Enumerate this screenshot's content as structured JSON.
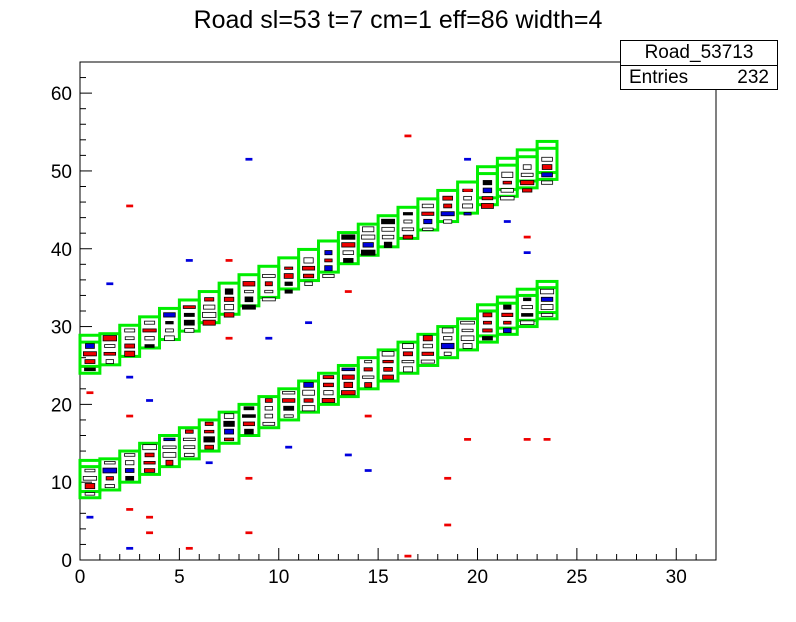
{
  "chart_data": {
    "type": "heatmap",
    "title": "Road sl=53 t=7 cm=1 eff=86 width=4",
    "xlabel": "",
    "ylabel": "",
    "xlim": [
      0,
      32
    ],
    "ylim": [
      0,
      64
    ],
    "x_ticks": [
      0,
      5,
      10,
      15,
      20,
      25,
      30
    ],
    "y_ticks": [
      0,
      10,
      20,
      30,
      40,
      50,
      60
    ],
    "grid": false,
    "legend_position": "top-right",
    "stats": {
      "name": "Road_53713",
      "entries_label": "Entries",
      "entries": "232"
    },
    "road_color": "#00ee00",
    "road_width": 4,
    "roads": [
      {
        "name": "upper",
        "y_start": 24,
        "slope": 1.083
      },
      {
        "name": "lower",
        "y_start": 8,
        "slope": 1.0
      }
    ],
    "stray_hits": [
      {
        "x": 16.5,
        "y": 54.5,
        "c": "red"
      },
      {
        "x": 8.5,
        "y": 51.5,
        "c": "blue"
      },
      {
        "x": 2.5,
        "y": 45.5,
        "c": "red"
      },
      {
        "x": 5.5,
        "y": 38.5,
        "c": "blue"
      },
      {
        "x": 7.5,
        "y": 38.5,
        "c": "red"
      },
      {
        "x": 1.5,
        "y": 35.5,
        "c": "blue"
      },
      {
        "x": 13.5,
        "y": 34.5,
        "c": "red"
      },
      {
        "x": 11.5,
        "y": 30.5,
        "c": "blue"
      },
      {
        "x": 7.5,
        "y": 28.5,
        "c": "red"
      },
      {
        "x": 9.5,
        "y": 28.5,
        "c": "blue"
      },
      {
        "x": 2.5,
        "y": 23.5,
        "c": "blue"
      },
      {
        "x": 0.5,
        "y": 21.5,
        "c": "red"
      },
      {
        "x": 3.5,
        "y": 20.5,
        "c": "blue"
      },
      {
        "x": 2.5,
        "y": 18.5,
        "c": "red"
      },
      {
        "x": 14.5,
        "y": 18.5,
        "c": "red"
      },
      {
        "x": 10.5,
        "y": 14.5,
        "c": "blue"
      },
      {
        "x": 19.5,
        "y": 15.5,
        "c": "red"
      },
      {
        "x": 22.5,
        "y": 15.5,
        "c": "red"
      },
      {
        "x": 23.5,
        "y": 15.5,
        "c": "red"
      },
      {
        "x": 13.5,
        "y": 13.5,
        "c": "blue"
      },
      {
        "x": 6.5,
        "y": 12.5,
        "c": "blue"
      },
      {
        "x": 14.5,
        "y": 11.5,
        "c": "blue"
      },
      {
        "x": 8.5,
        "y": 10.5,
        "c": "red"
      },
      {
        "x": 18.5,
        "y": 10.5,
        "c": "red"
      },
      {
        "x": 2.5,
        "y": 6.5,
        "c": "red"
      },
      {
        "x": 0.5,
        "y": 5.5,
        "c": "blue"
      },
      {
        "x": 3.5,
        "y": 5.5,
        "c": "red"
      },
      {
        "x": 3.5,
        "y": 3.5,
        "c": "red"
      },
      {
        "x": 8.5,
        "y": 3.5,
        "c": "red"
      },
      {
        "x": 18.5,
        "y": 4.5,
        "c": "red"
      },
      {
        "x": 2.5,
        "y": 1.5,
        "c": "blue"
      },
      {
        "x": 5.5,
        "y": 1.5,
        "c": "red"
      },
      {
        "x": 16.5,
        "y": 0.5,
        "c": "red"
      },
      {
        "x": 19.5,
        "y": 51.5,
        "c": "blue"
      },
      {
        "x": 21.5,
        "y": 43.5,
        "c": "blue"
      },
      {
        "x": 22.5,
        "y": 41.5,
        "c": "red"
      },
      {
        "x": 22.5,
        "y": 39.5,
        "c": "blue"
      },
      {
        "x": 19.5,
        "y": 47.5,
        "c": "red"
      }
    ]
  }
}
